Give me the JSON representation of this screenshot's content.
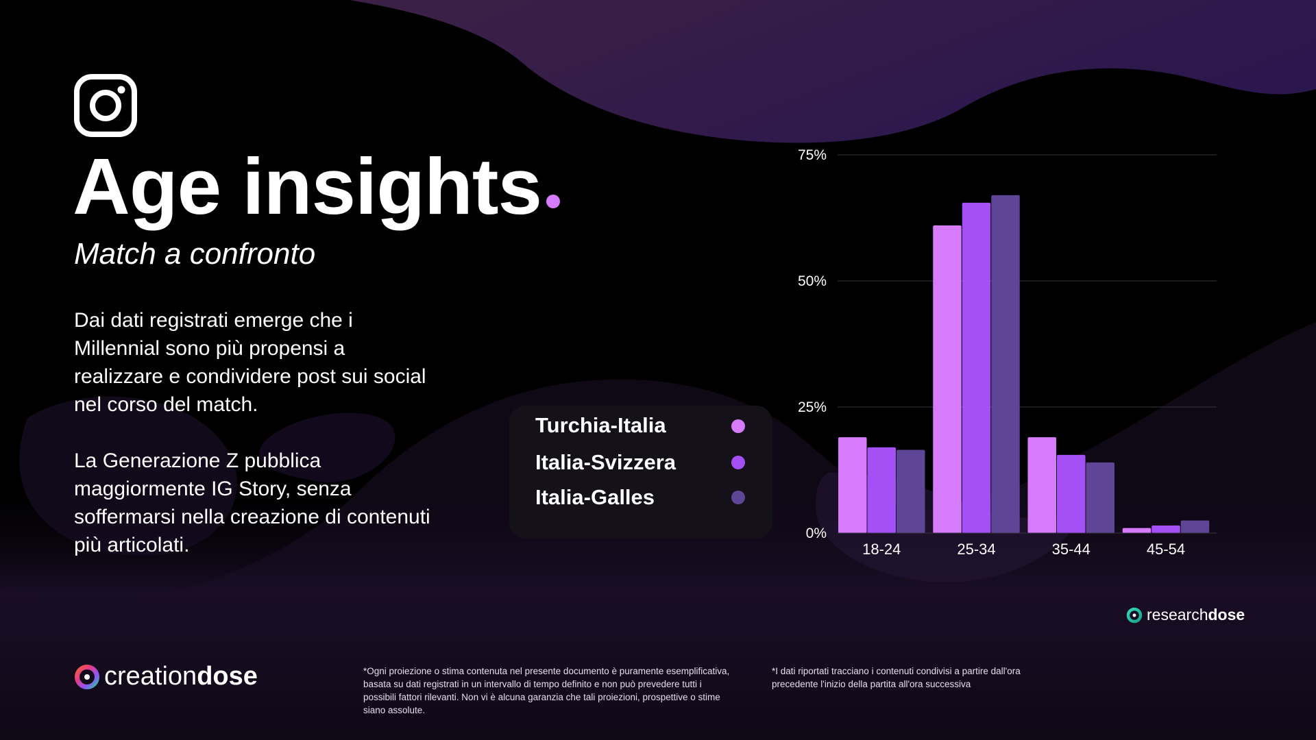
{
  "header": {
    "title": "Age insights",
    "subtitle": "Match a confronto"
  },
  "body": {
    "paragraph1": "Dai dati registrati emerge che i Millennial sono più propensi a realizzare e condividere post sui social nel corso del match.",
    "paragraph2": "La Generazione Z pubblica maggiormente IG Story, senza soffermarsi nella creazione di contenuti più articolati."
  },
  "colors": {
    "accent": "#d77bfd",
    "series1": "#d77bfd",
    "series2": "#a550f6",
    "series3": "#5e4596",
    "gridline": "#3a3343"
  },
  "icons": {
    "instagram": "instagram-icon",
    "researchdose": "researchdose-logo-icon",
    "creationdose": "creationdose-logo-icon"
  },
  "chart_data": {
    "type": "bar",
    "categories": [
      "18-24",
      "25-34",
      "35-44",
      "45-54"
    ],
    "series": [
      {
        "name": "Turchia-Italia",
        "values": [
          19,
          61,
          19,
          1
        ]
      },
      {
        "name": "Italia-Svizzera",
        "values": [
          17,
          65.5,
          15.5,
          1.5
        ]
      },
      {
        "name": "Italia-Galles",
        "values": [
          16.5,
          67,
          14,
          2.5
        ]
      }
    ],
    "yticks": [
      "0%",
      "25%",
      "50%",
      "75%"
    ],
    "ylim": [
      0,
      75
    ],
    "grid": true,
    "legend_position": "left"
  },
  "brands": {
    "researchdose": {
      "light": "research",
      "bold": "dose"
    },
    "creationdose": {
      "light": "creation",
      "bold": "dose"
    }
  },
  "footnotes": {
    "note1": "*Ogni proiezione o stima contenuta nel presente documento è puramente esemplificativa, basata su dati registrati in un intervallo di tempo definito e non può prevedere tutti i possibili fattori rilevanti. Non vi è alcuna garanzia che tali proiezioni, prospettive o stime siano assolute.",
    "note2": "*I dati riportati tracciano i contenuti condivisi a partire dall'ora precedente l'inizio della partita all'ora successiva"
  }
}
